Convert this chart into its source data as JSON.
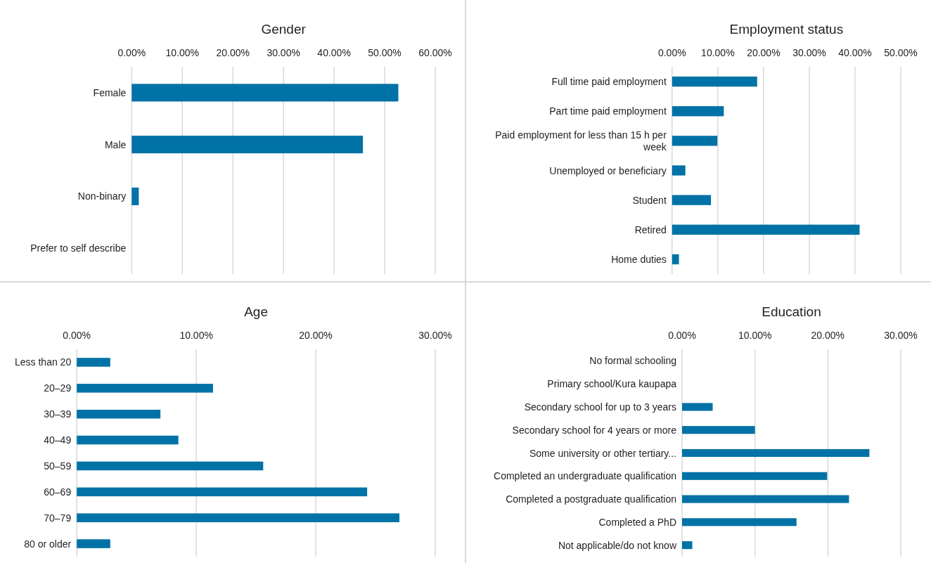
{
  "chart_data": [
    {
      "type": "bar",
      "orientation": "horizontal",
      "title": "Gender",
      "categories": [
        "Female",
        "Male",
        "Non-binary",
        "Prefer to self describe"
      ],
      "values": [
        52.7,
        45.7,
        1.4,
        0
      ],
      "color": "#0072a6",
      "xlim": [
        0,
        60
      ],
      "xticks": [
        {
          "value": 0,
          "label": "0.00%"
        },
        {
          "value": 10,
          "label": "10.00%"
        },
        {
          "value": 20,
          "label": "20.00%"
        },
        {
          "value": 30,
          "label": "30.00%"
        },
        {
          "value": 40,
          "label": "40.00%"
        },
        {
          "value": 50,
          "label": "50.00%"
        },
        {
          "value": 60,
          "label": "60.00%"
        }
      ],
      "grid": "x"
    },
    {
      "type": "bar",
      "orientation": "horizontal",
      "title": "Employment status",
      "categories": [
        "Full time paid employment",
        "Part time paid employment",
        "Paid employment for less than 15 h per week",
        "Unemployed or beneficiary",
        "Student",
        "Retired",
        "Home duties"
      ],
      "values": [
        18.6,
        11.3,
        9.9,
        2.9,
        8.5,
        41.0,
        1.5
      ],
      "color": "#0072a6",
      "xlim": [
        0,
        50
      ],
      "xticks": [
        {
          "value": 0,
          "label": "0.00%"
        },
        {
          "value": 10,
          "label": "10.00%"
        },
        {
          "value": 20,
          "label": "20.00%"
        },
        {
          "value": 30,
          "label": "30.00%"
        },
        {
          "value": 40,
          "label": "40.00%"
        },
        {
          "value": 50,
          "label": "50.00%"
        }
      ],
      "grid": "x"
    },
    {
      "type": "bar",
      "orientation": "horizontal",
      "title": "Age",
      "categories": [
        "Less than 20",
        "20–29",
        "30–39",
        "40–49",
        "50–59",
        "60–69",
        "70–79",
        "80 or older"
      ],
      "values": [
        2.8,
        11.4,
        7.0,
        8.5,
        15.6,
        24.3,
        27.0,
        2.8
      ],
      "color": "#0072a6",
      "xlim": [
        0,
        30
      ],
      "xticks": [
        {
          "value": 0,
          "label": "0.00%"
        },
        {
          "value": 10,
          "label": "10.00%"
        },
        {
          "value": 20,
          "label": "20.00%"
        },
        {
          "value": 30,
          "label": "30.00%"
        }
      ],
      "grid": "x"
    },
    {
      "type": "bar",
      "orientation": "horizontal",
      "title": "Education",
      "categories": [
        "No formal schooling",
        "Primary school/Kura kaupapa",
        "Secondary school for up to 3 years",
        "Secondary school for 4 years or more",
        "Some university or other tertiary...",
        "Completed an undergraduate qualification",
        "Completed a postgraduate qualification",
        "Completed a PhD",
        "Not applicable/do not know"
      ],
      "values": [
        0,
        0,
        4.2,
        10.0,
        25.7,
        19.9,
        22.9,
        15.7,
        1.4
      ],
      "color": "#0072a6",
      "xlim": [
        0,
        30
      ],
      "xticks": [
        {
          "value": 0,
          "label": "0.00%"
        },
        {
          "value": 10,
          "label": "10.00%"
        },
        {
          "value": 20,
          "label": "20.00%"
        },
        {
          "value": 30,
          "label": "30.00%"
        }
      ],
      "grid": "x"
    }
  ]
}
